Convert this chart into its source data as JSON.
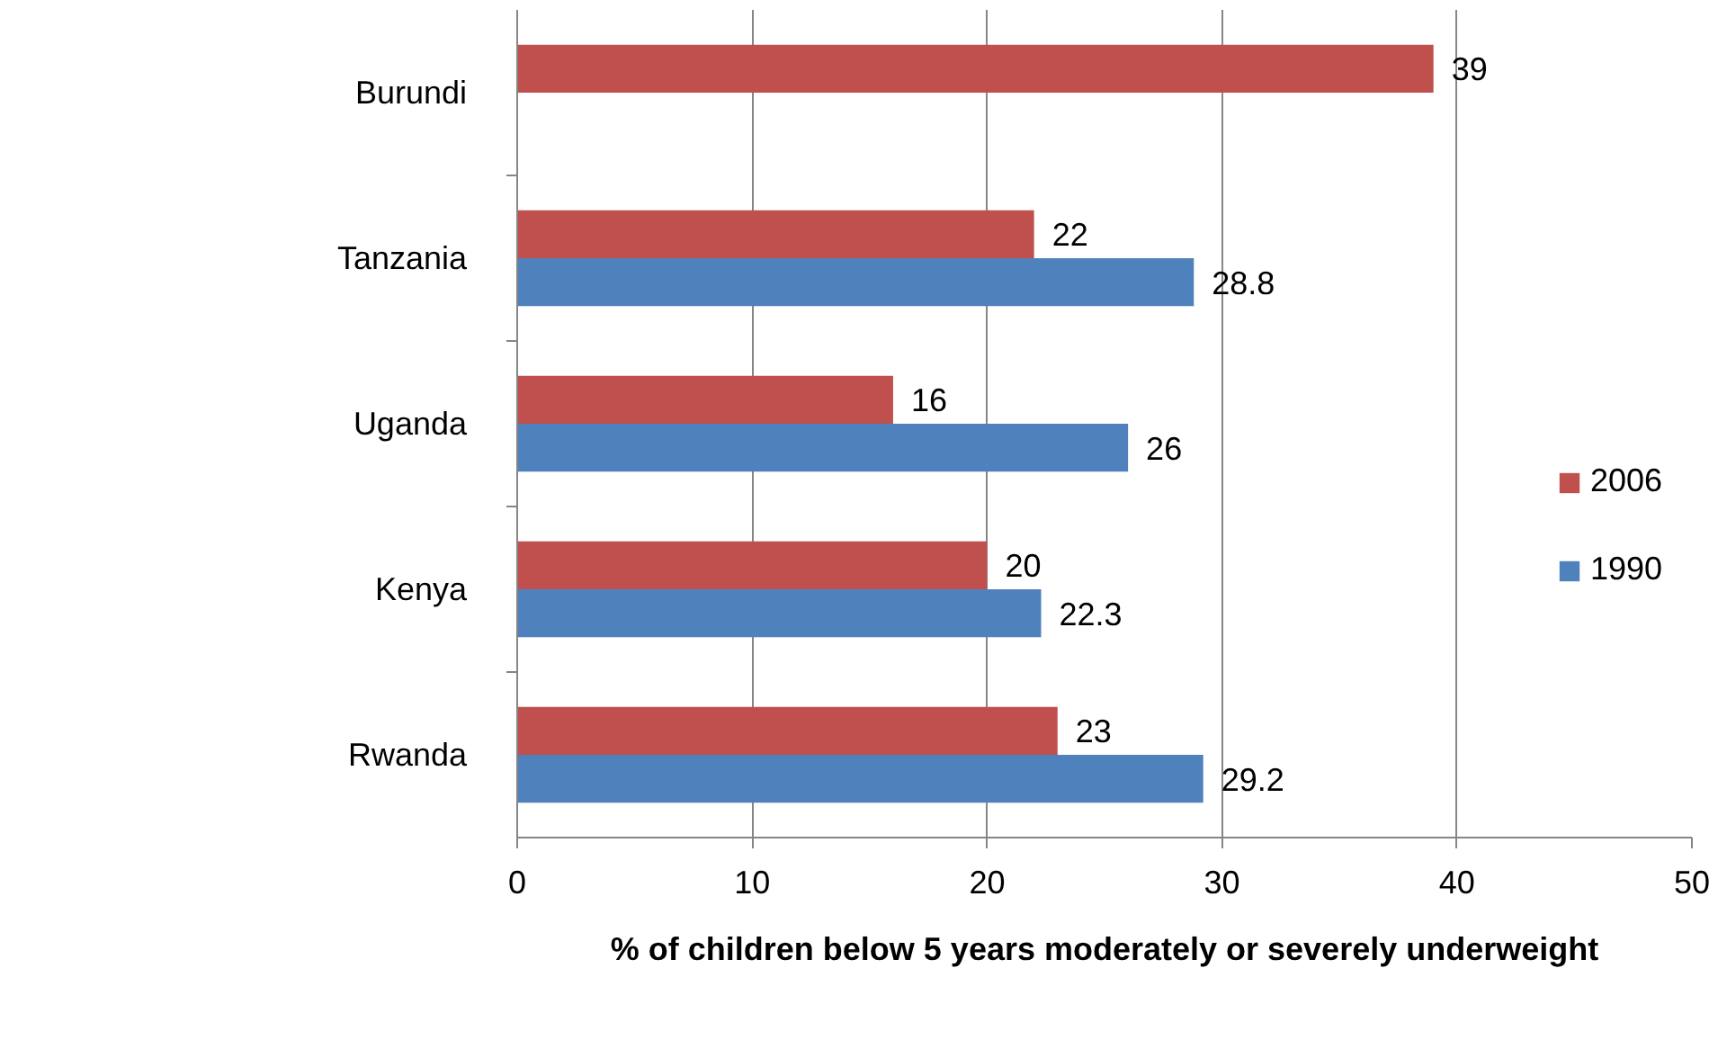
{
  "chart_data": {
    "type": "bar",
    "orientation": "horizontal",
    "xlabel": "% of children below 5 years moderately or severely underweight",
    "categories": [
      "Burundi",
      "Tanzania",
      "Uganda",
      "Kenya",
      "Rwanda"
    ],
    "series": [
      {
        "name": "2006",
        "color": "#c0504d",
        "values": [
          39,
          22,
          16,
          20,
          23
        ]
      },
      {
        "name": "1990",
        "color": "#4f81bd",
        "values": [
          null,
          28.8,
          26,
          22.3,
          29.2
        ]
      }
    ],
    "xlim": [
      0,
      50
    ],
    "xticks": [
      0,
      10,
      20,
      30,
      40,
      50
    ],
    "grid": "x",
    "legend": "right",
    "data_labels": true
  }
}
